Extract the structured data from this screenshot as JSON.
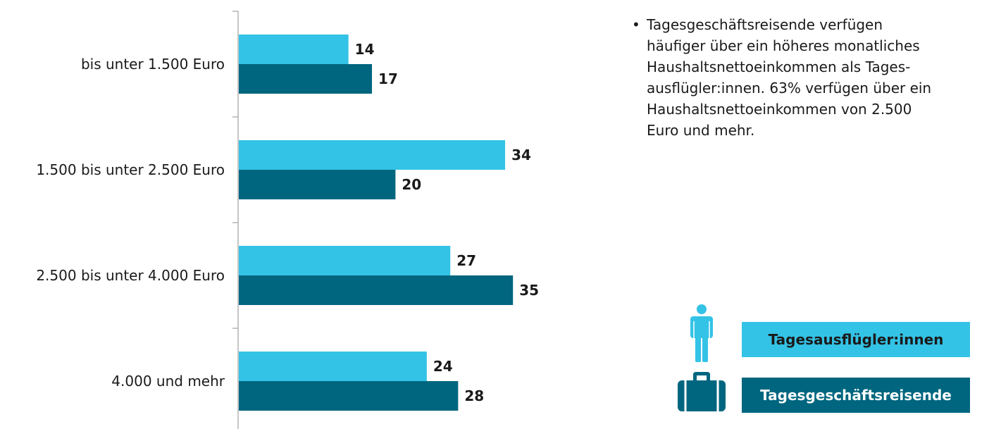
{
  "chart_data": {
    "type": "bar",
    "orientation": "horizontal",
    "categories": [
      "bis unter 1.500 Euro",
      "1.500 bis unter 2.500 Euro",
      "2.500 bis unter 4.000 Euro",
      "4.000 und mehr"
    ],
    "series": [
      {
        "name": "Tagesausflügler:innen",
        "values": [
          14,
          34,
          27,
          24
        ],
        "color": "#33c3e6"
      },
      {
        "name": "Tagesgeschäftsreisende",
        "values": [
          17,
          20,
          35,
          28
        ],
        "color": "#00667f"
      }
    ],
    "xlim": [
      0,
      40
    ],
    "grid": false,
    "legend_position": "bottom-right"
  },
  "note": {
    "bullet": "•",
    "text": "Tagesgeschäftsreisende verfügen häufiger über ein höheres monatliches Haushaltsnettoeinkommen als Tages­ausflügler:innen. 63% verfügen über ein Haushaltsnettoeinkommen von 2.500 Euro und mehr."
  },
  "legend": {
    "items": [
      {
        "label": "Tagesausflügler:innen",
        "icon": "person-icon"
      },
      {
        "label": "Tagesgeschäftsreisende",
        "icon": "suitcase-icon"
      }
    ]
  }
}
